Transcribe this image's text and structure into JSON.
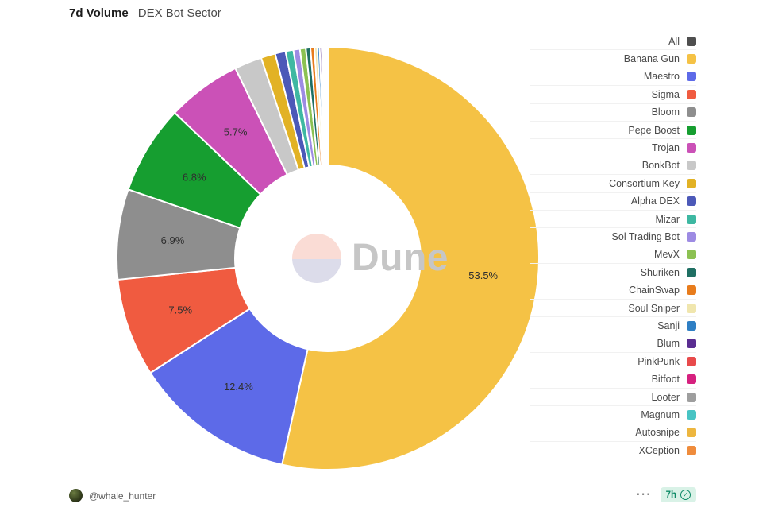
{
  "header": {
    "title": "7d Volume",
    "subtitle": "DEX Bot Sector"
  },
  "watermark": {
    "text": "Dune"
  },
  "footer": {
    "author_handle": "@whale_hunter",
    "menu_glyph": "⋯",
    "refresh_age": "7h",
    "check_glyph": "✓"
  },
  "legend": {
    "position": "right",
    "all_item": {
      "label": "All",
      "color": "#4f4f4f"
    }
  },
  "chart_data": {
    "type": "pie",
    "donut": true,
    "title": "7d Volume — DEX Bot Sector",
    "units": "%",
    "start_angle_deg": 0,
    "direction": "clockwise",
    "label_threshold_pct": 5,
    "slices": [
      {
        "label": "Banana Gun",
        "value": 53.5,
        "color": "#f5c245"
      },
      {
        "label": "Maestro",
        "value": 12.4,
        "color": "#5d6ae8"
      },
      {
        "label": "Sigma",
        "value": 7.5,
        "color": "#f05b40"
      },
      {
        "label": "Bloom",
        "value": 6.9,
        "color": "#8e8e8e"
      },
      {
        "label": "Pepe Boost",
        "value": 6.8,
        "color": "#169e30"
      },
      {
        "label": "Trojan",
        "value": 5.7,
        "color": "#cb51b7"
      },
      {
        "label": "BonkBot",
        "value": 2.1,
        "color": "#c8c8c8"
      },
      {
        "label": "Consortium Key",
        "value": 1.1,
        "color": "#e2b225"
      },
      {
        "label": "Alpha DEX",
        "value": 0.8,
        "color": "#4c59b8"
      },
      {
        "label": "Mizar",
        "value": 0.6,
        "color": "#3eb8a2"
      },
      {
        "label": "Sol Trading Bot",
        "value": 0.5,
        "color": "#9d8be3"
      },
      {
        "label": "MevX",
        "value": 0.45,
        "color": "#8cc152"
      },
      {
        "label": "Shuriken",
        "value": 0.35,
        "color": "#1f6f63"
      },
      {
        "label": "ChainSwap",
        "value": 0.3,
        "color": "#e87c1c"
      },
      {
        "label": "Soul Sniper",
        "value": 0.22,
        "color": "#f0e6ae"
      },
      {
        "label": "Sanji",
        "value": 0.18,
        "color": "#2e7fc4"
      },
      {
        "label": "Blum",
        "value": 0.15,
        "color": "#5a2d91"
      },
      {
        "label": "PinkPunk",
        "value": 0.12,
        "color": "#e84a4b"
      },
      {
        "label": "Bitfoot",
        "value": 0.1,
        "color": "#d6217f"
      },
      {
        "label": "Looter",
        "value": 0.08,
        "color": "#9e9e9e"
      },
      {
        "label": "Magnum",
        "value": 0.07,
        "color": "#48c4c4"
      },
      {
        "label": "Autosnipe",
        "value": 0.05,
        "color": "#edb63f"
      },
      {
        "label": "XCeption",
        "value": 0.05,
        "color": "#ef8c3c"
      }
    ]
  }
}
